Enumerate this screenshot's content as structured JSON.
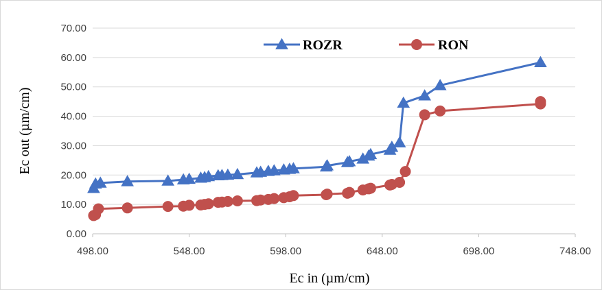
{
  "chart_data": {
    "type": "line",
    "title": "",
    "xlabel": "Ec in (µm/cm)",
    "ylabel": "Ec out (µm/cm)",
    "xlim": [
      498,
      748
    ],
    "ylim": [
      0,
      70
    ],
    "x_ticks": [
      498,
      548,
      598,
      648,
      698,
      748
    ],
    "y_ticks": [
      0,
      10,
      20,
      30,
      40,
      50,
      60,
      70
    ],
    "x_tick_labels": [
      "498.00",
      "548.00",
      "598.00",
      "648.00",
      "698.00",
      "748.00"
    ],
    "y_tick_labels": [
      "0.00",
      "10.00",
      "20.00",
      "30.00",
      "40.00",
      "50.00",
      "60.00",
      "70.00"
    ],
    "grid": "horizontal",
    "legend_position": "top-center",
    "series": [
      {
        "name": "ROZR",
        "color": "#4472c4",
        "marker": "triangle",
        "points": [
          [
            498.5,
            15.5
          ],
          [
            499.5,
            17.0
          ],
          [
            502,
            17.3
          ],
          [
            516,
            17.8
          ],
          [
            537,
            18.0
          ],
          [
            545,
            18.4
          ],
          [
            548,
            18.6
          ],
          [
            554,
            19.0
          ],
          [
            556,
            19.2
          ],
          [
            558,
            19.5
          ],
          [
            563,
            19.8
          ],
          [
            565,
            19.9
          ],
          [
            568,
            20.0
          ],
          [
            573,
            20.2
          ],
          [
            583,
            20.8
          ],
          [
            585,
            21.0
          ],
          [
            589,
            21.3
          ],
          [
            592,
            21.5
          ],
          [
            597,
            21.8
          ],
          [
            600,
            22.0
          ],
          [
            602,
            22.2
          ],
          [
            619,
            22.8
          ],
          [
            619.5,
            23.2
          ],
          [
            630,
            24.3
          ],
          [
            631,
            24.6
          ],
          [
            638,
            25.5
          ],
          [
            641,
            26.5
          ],
          [
            642,
            27.0
          ],
          [
            652,
            28.5
          ],
          [
            653,
            29.5
          ],
          [
            657,
            31.0
          ],
          [
            659,
            44.5
          ],
          [
            670,
            47.0
          ],
          [
            678,
            50.5
          ],
          [
            730,
            58.3
          ]
        ]
      },
      {
        "name": "RON",
        "color": "#c0504d",
        "marker": "circle",
        "points": [
          [
            498.5,
            6.2
          ],
          [
            499.5,
            6.5
          ],
          [
            501,
            8.5
          ],
          [
            516,
            8.8
          ],
          [
            537,
            9.3
          ],
          [
            545,
            9.4
          ],
          [
            548,
            9.7
          ],
          [
            554,
            9.8
          ],
          [
            556,
            10.0
          ],
          [
            558,
            10.2
          ],
          [
            563,
            10.7
          ],
          [
            565,
            10.8
          ],
          [
            568,
            11.0
          ],
          [
            573,
            11.2
          ],
          [
            583,
            11.3
          ],
          [
            585,
            11.5
          ],
          [
            589,
            11.7
          ],
          [
            592,
            12.0
          ],
          [
            597,
            12.3
          ],
          [
            600,
            12.6
          ],
          [
            602,
            13.0
          ],
          [
            619,
            13.3
          ],
          [
            619.5,
            13.5
          ],
          [
            630,
            13.8
          ],
          [
            631,
            14.1
          ],
          [
            638,
            14.9
          ],
          [
            641,
            15.3
          ],
          [
            642,
            15.5
          ],
          [
            652,
            16.6
          ],
          [
            653,
            16.8
          ],
          [
            657,
            17.5
          ],
          [
            660,
            21.2
          ],
          [
            670,
            40.5
          ],
          [
            678,
            41.8
          ],
          [
            730,
            44.2
          ],
          [
            730,
            45.0
          ]
        ]
      }
    ]
  }
}
